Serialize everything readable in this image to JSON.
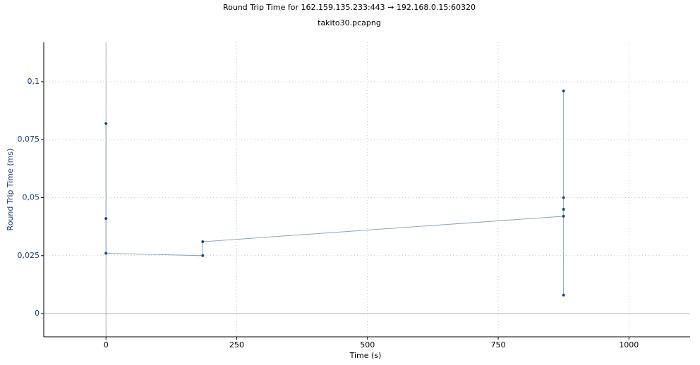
{
  "chart_data": {
    "type": "line",
    "title": "Round Trip Time for 162.159.135.233:443 → 192.168.0.15:60320",
    "subtitle": "takito30.pcapng",
    "x_label": "Time (s)",
    "y_label": "Round Trip Time (ms)",
    "x": [
      0,
      0,
      0,
      185,
      185,
      875,
      875,
      875,
      875,
      875
    ],
    "series": [
      {
        "name": "Round Trip Time",
        "color": "#8aa4c0",
        "marker_color": "#1f4a80",
        "values": [
          0.082,
          0.041,
          0.026,
          0.025,
          0.031,
          0.042,
          0.045,
          0.05,
          0.096,
          0.008
        ]
      }
    ],
    "xlim": [
      -119,
      1117
    ],
    "ylim": [
      -0.01,
      0.117
    ],
    "xticks": [
      0,
      250,
      500,
      750,
      1000
    ],
    "yticks": [
      0,
      {
        "value": 0.025,
        "label": "0,025"
      },
      {
        "value": 0.05,
        "label": "0,05"
      },
      {
        "value": 0.075,
        "label": "0,075"
      },
      {
        "value": 0.1,
        "label": "0,1"
      }
    ],
    "grid": true
  }
}
